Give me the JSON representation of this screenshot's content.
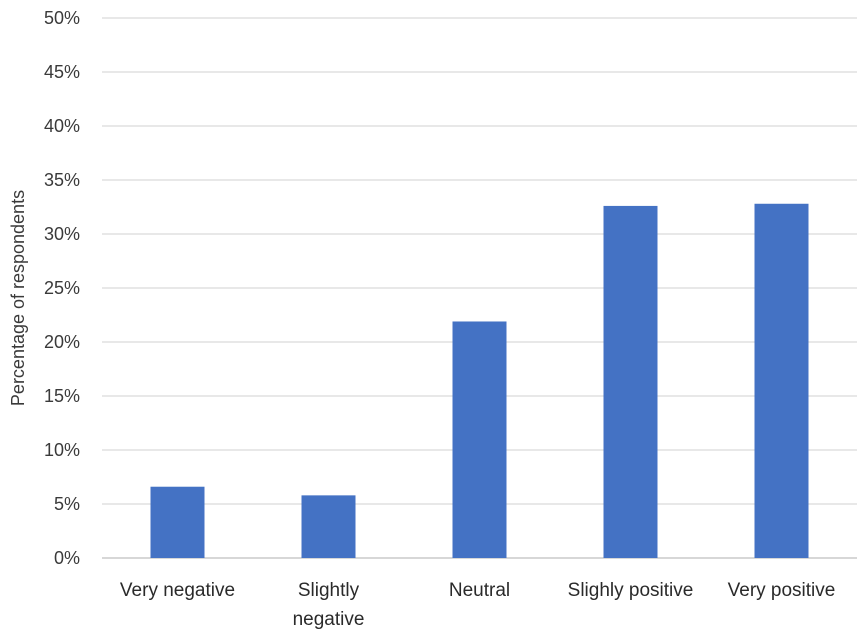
{
  "chart_data": {
    "type": "bar",
    "title": "",
    "xlabel": "",
    "ylabel": "Percentage of respondents",
    "categories": [
      [
        "Very negative"
      ],
      [
        "Slightly",
        "negative"
      ],
      [
        "Neutral"
      ],
      [
        "Slighly positive"
      ],
      [
        "Very positive"
      ]
    ],
    "values": [
      6.6,
      5.8,
      21.9,
      32.6,
      32.8
    ],
    "ylim": [
      0,
      50
    ],
    "yticks": [
      0,
      5,
      10,
      15,
      20,
      25,
      30,
      35,
      40,
      45,
      50
    ],
    "ytick_suffix": "%",
    "grid": true,
    "legend": "none",
    "bar_color": "#4472c4"
  }
}
